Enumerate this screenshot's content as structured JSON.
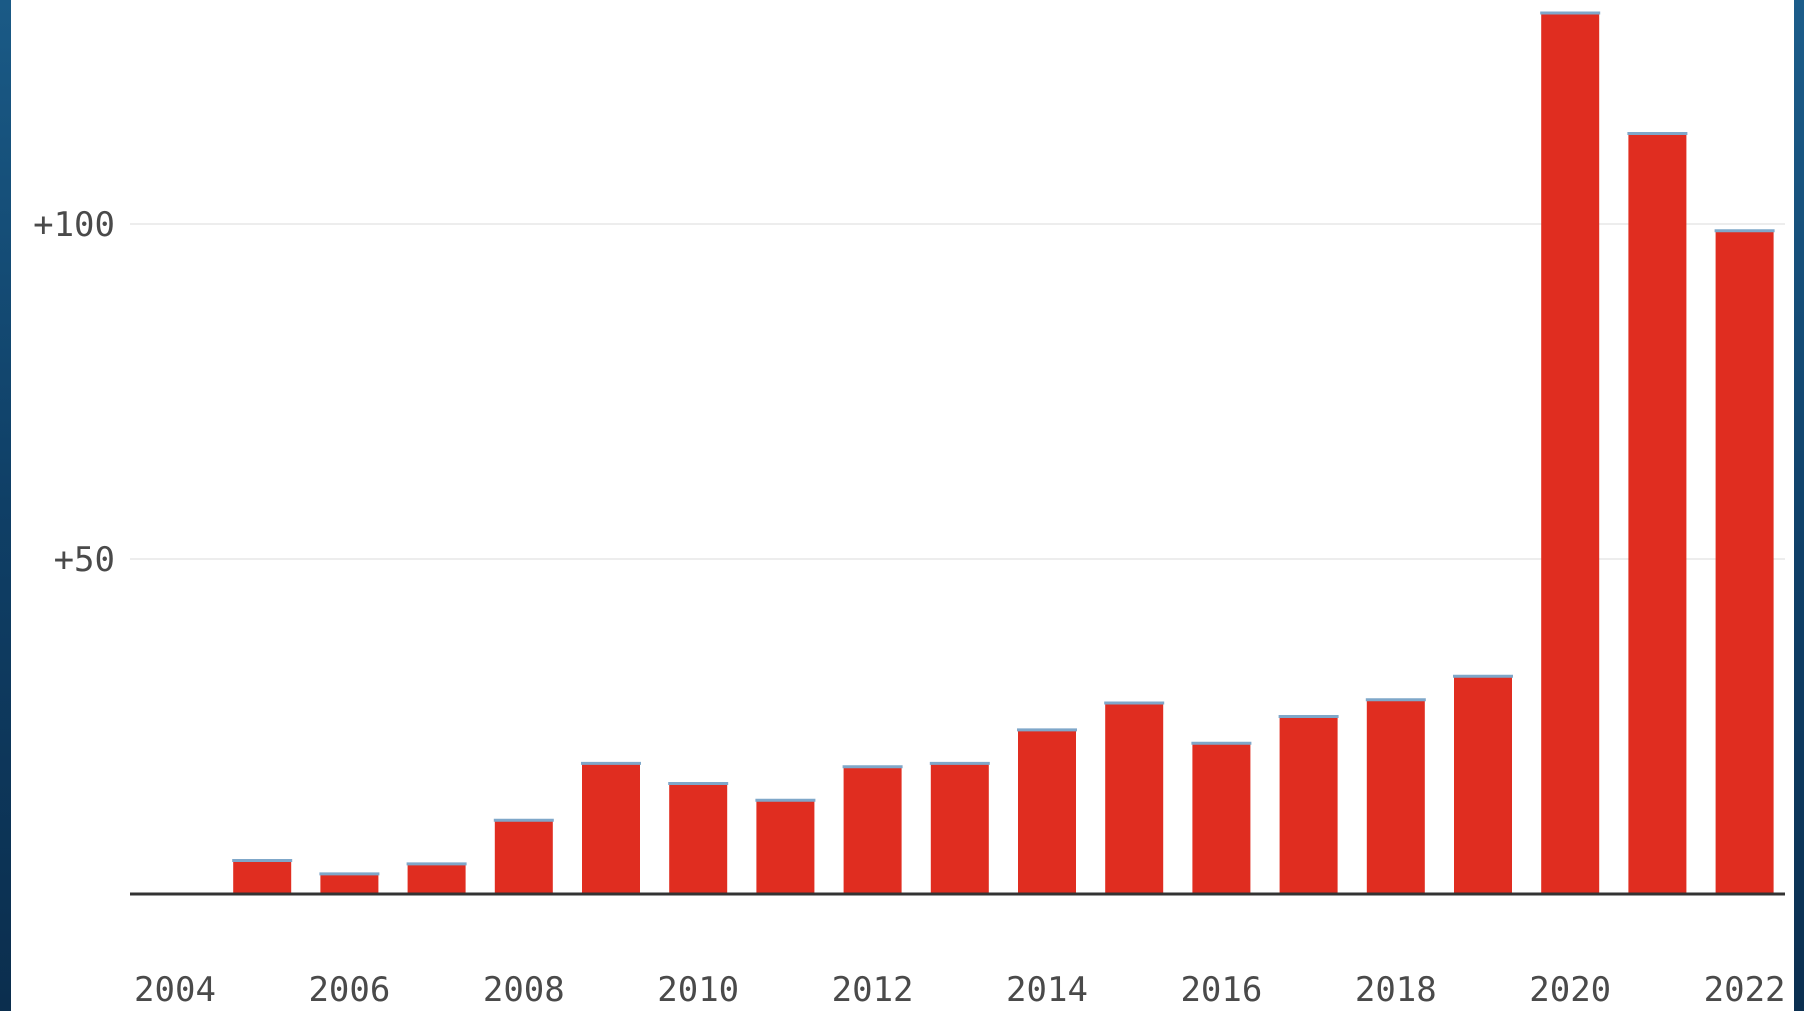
{
  "chart_data": {
    "type": "bar",
    "title": "",
    "xlabel": "",
    "ylabel": "",
    "categories": [
      "2004",
      "2005",
      "2006",
      "2007",
      "2008",
      "2009",
      "2010",
      "2011",
      "2012",
      "2013",
      "2014",
      "2015",
      "2016",
      "2017",
      "2018",
      "2019",
      "2020",
      "2021",
      "2022"
    ],
    "values": [
      0,
      5,
      3,
      4.5,
      11,
      19.5,
      16.5,
      14,
      19,
      19.5,
      24.5,
      28.5,
      22.5,
      26.5,
      29,
      32.5,
      131.5,
      113.5,
      99
    ],
    "ylim": [
      0,
      131.5
    ],
    "y_ticks": [
      {
        "value": 50,
        "label": "+50"
      },
      {
        "value": 100,
        "label": "+100"
      }
    ],
    "x_tick_labels": [
      "2004",
      "2006",
      "2008",
      "2010",
      "2012",
      "2014",
      "2016",
      "2018",
      "2020",
      "2022"
    ],
    "grid": true,
    "legend": "none",
    "colors": {
      "bar": "#e02d20",
      "bar_cap": "#7fa7c9",
      "grid": "#ededed",
      "axis": "#333333",
      "text": "#4a4a4a"
    }
  }
}
